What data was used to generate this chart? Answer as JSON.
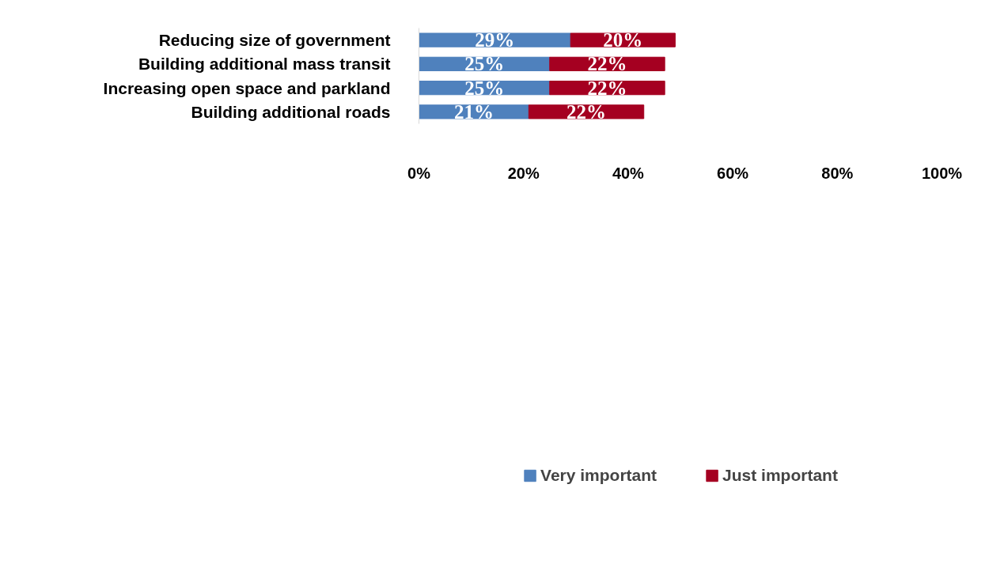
{
  "chart_data": {
    "type": "bar",
    "orientation": "horizontal",
    "stacked": true,
    "categories": [
      "Reducing size of government",
      "Building additional mass transit",
      "Increasing open space and parkland",
      "Building additional roads"
    ],
    "series": [
      {
        "name": "Very important",
        "color": "#4f81bd",
        "values": [
          29,
          25,
          25,
          21
        ],
        "value_labels": [
          "29%",
          "25%",
          "25%",
          "21%"
        ]
      },
      {
        "name": "Just important",
        "color": "#a50021",
        "values": [
          20,
          22,
          22,
          22
        ],
        "value_labels": [
          "20%",
          "22%",
          "22%",
          "22%"
        ]
      }
    ],
    "xlim": [
      0,
      100
    ],
    "xticks": [
      {
        "value": 0,
        "label": "0%"
      },
      {
        "value": 20,
        "label": "20%"
      },
      {
        "value": 40,
        "label": "40%"
      },
      {
        "value": 60,
        "label": "60%"
      },
      {
        "value": 80,
        "label": "80%"
      },
      {
        "value": 100,
        "label": "100%"
      }
    ],
    "grid": false,
    "legend": "bottom"
  }
}
